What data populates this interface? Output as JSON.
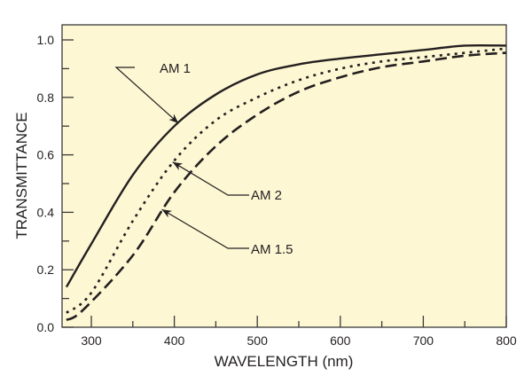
{
  "chart_data": {
    "type": "line",
    "title": "",
    "xlabel": "WAVELENGTH (nm)",
    "ylabel": "TRANSMITTANCE",
    "xlim": [
      265,
      800
    ],
    "ylim": [
      0,
      1.05
    ],
    "xticks": [
      300,
      400,
      500,
      600,
      700,
      800
    ],
    "xminor": [
      350,
      450,
      550,
      650,
      750
    ],
    "yticks": [
      "0.0",
      "0.2",
      "0.4",
      "0.6",
      "0.8",
      "1.0"
    ],
    "yminor": [
      0.1,
      0.3,
      0.5,
      0.7,
      0.9
    ],
    "grid": false,
    "background_color": "#fdf7d3",
    "line_color": "#231f20",
    "series": [
      {
        "name": "AM 1",
        "style": "solid",
        "x": [
          270,
          300,
          350,
          400,
          450,
          500,
          550,
          600,
          650,
          700,
          750,
          800
        ],
        "y": [
          0.14,
          0.29,
          0.53,
          0.7,
          0.81,
          0.88,
          0.915,
          0.935,
          0.95,
          0.965,
          0.98,
          0.98
        ]
      },
      {
        "name": "AM 2",
        "style": "dotted",
        "x": [
          270,
          300,
          350,
          400,
          450,
          500,
          550,
          600,
          650,
          700,
          750,
          800
        ],
        "y": [
          0.05,
          0.12,
          0.37,
          0.58,
          0.72,
          0.8,
          0.86,
          0.9,
          0.925,
          0.94,
          0.955,
          0.97
        ]
      },
      {
        "name": "AM 1.5",
        "style": "dashed",
        "x": [
          270,
          290,
          350,
          400,
          450,
          500,
          550,
          600,
          650,
          700,
          750,
          800
        ],
        "y": [
          0.025,
          0.06,
          0.25,
          0.47,
          0.63,
          0.74,
          0.82,
          0.87,
          0.905,
          0.925,
          0.945,
          0.955
        ]
      }
    ],
    "annotations": [
      {
        "text": "AM 1",
        "series": "AM 1",
        "arrow_to": [
          405,
          0.71
        ]
      },
      {
        "text": "AM 2",
        "series": "AM 2",
        "arrow_to": [
          398,
          0.575
        ]
      },
      {
        "text": "AM 1.5",
        "series": "AM 1.5",
        "arrow_to": [
          385,
          0.41
        ]
      }
    ]
  }
}
